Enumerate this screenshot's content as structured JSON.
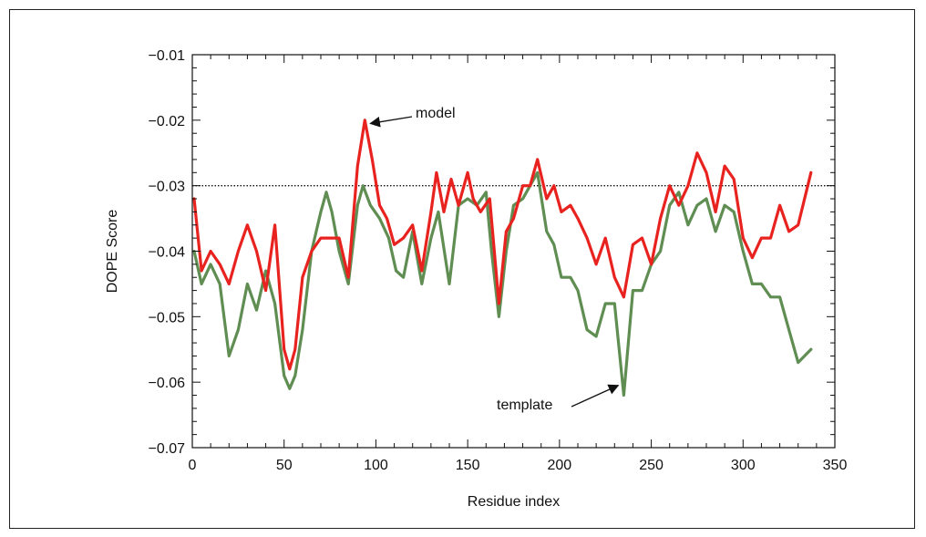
{
  "chart_data": {
    "type": "line",
    "title": "",
    "xlabel": "Residue index",
    "ylabel": "DOPE Score",
    "xlim": [
      0,
      350
    ],
    "ylim": [
      -0.07,
      -0.01
    ],
    "xticks": [
      0,
      50,
      100,
      150,
      200,
      250,
      300,
      350
    ],
    "yticks": [
      -0.07,
      -0.06,
      -0.05,
      -0.04,
      -0.03,
      -0.02,
      -0.01
    ],
    "xtick_labels": [
      "0",
      "50",
      "100",
      "150",
      "200",
      "250",
      "300",
      "350"
    ],
    "ytick_labels": [
      "−0.07",
      "−0.06",
      "−0.05",
      "−0.04",
      "−0.03",
      "−0.02",
      "−0.01"
    ],
    "grid": false,
    "reference_line": {
      "y": -0.03,
      "style": "dotted"
    },
    "series": [
      {
        "name": "model",
        "color": "#e8231f",
        "x": [
          1,
          5,
          10,
          15,
          20,
          25,
          30,
          35,
          40,
          45,
          50,
          53,
          56,
          60,
          65,
          70,
          75,
          80,
          85,
          90,
          94,
          98,
          102,
          106,
          110,
          115,
          120,
          125,
          130,
          133,
          137,
          141,
          145,
          150,
          153,
          157,
          162,
          167,
          171,
          175,
          180,
          184,
          188,
          193,
          197,
          201,
          206,
          210,
          215,
          220,
          225,
          230,
          235,
          240,
          245,
          250,
          255,
          260,
          265,
          270,
          275,
          280,
          285,
          290,
          295,
          300,
          305,
          310,
          315,
          320,
          325,
          330,
          337
        ],
        "values": [
          -0.032,
          -0.043,
          -0.04,
          -0.042,
          -0.045,
          -0.04,
          -0.036,
          -0.04,
          -0.046,
          -0.036,
          -0.055,
          -0.058,
          -0.055,
          -0.044,
          -0.04,
          -0.038,
          -0.038,
          -0.038,
          -0.044,
          -0.027,
          -0.02,
          -0.026,
          -0.033,
          -0.035,
          -0.039,
          -0.038,
          -0.036,
          -0.043,
          -0.034,
          -0.028,
          -0.034,
          -0.029,
          -0.033,
          -0.028,
          -0.032,
          -0.034,
          -0.032,
          -0.048,
          -0.037,
          -0.035,
          -0.03,
          -0.03,
          -0.026,
          -0.032,
          -0.03,
          -0.034,
          -0.033,
          -0.035,
          -0.038,
          -0.042,
          -0.038,
          -0.044,
          -0.047,
          -0.039,
          -0.038,
          -0.042,
          -0.035,
          -0.03,
          -0.033,
          -0.03,
          -0.025,
          -0.028,
          -0.034,
          -0.027,
          -0.029,
          -0.038,
          -0.041,
          -0.038,
          -0.038,
          -0.033,
          -0.037,
          -0.036,
          -0.028
        ]
      },
      {
        "name": "template",
        "color": "#5f8d52",
        "x": [
          1,
          5,
          10,
          15,
          20,
          25,
          30,
          35,
          40,
          45,
          50,
          53,
          56,
          60,
          65,
          70,
          73,
          76,
          80,
          85,
          90,
          93,
          97,
          102,
          107,
          111,
          115,
          120,
          125,
          130,
          134,
          140,
          145,
          150,
          155,
          160,
          163,
          167,
          171,
          175,
          180,
          184,
          188,
          193,
          197,
          201,
          206,
          210,
          215,
          220,
          225,
          230,
          235,
          240,
          245,
          250,
          255,
          260,
          265,
          270,
          275,
          280,
          285,
          290,
          295,
          300,
          305,
          310,
          315,
          320,
          325,
          330,
          337
        ],
        "values": [
          -0.04,
          -0.045,
          -0.042,
          -0.045,
          -0.056,
          -0.052,
          -0.045,
          -0.049,
          -0.043,
          -0.048,
          -0.059,
          -0.061,
          -0.059,
          -0.052,
          -0.04,
          -0.034,
          -0.031,
          -0.034,
          -0.04,
          -0.045,
          -0.033,
          -0.03,
          -0.033,
          -0.035,
          -0.038,
          -0.043,
          -0.044,
          -0.037,
          -0.045,
          -0.038,
          -0.034,
          -0.045,
          -0.033,
          -0.032,
          -0.033,
          -0.031,
          -0.04,
          -0.05,
          -0.04,
          -0.033,
          -0.032,
          -0.03,
          -0.028,
          -0.037,
          -0.039,
          -0.044,
          -0.044,
          -0.046,
          -0.052,
          -0.053,
          -0.048,
          -0.048,
          -0.062,
          -0.046,
          -0.046,
          -0.042,
          -0.04,
          -0.033,
          -0.031,
          -0.036,
          -0.033,
          -0.032,
          -0.037,
          -0.033,
          -0.034,
          -0.04,
          -0.045,
          -0.045,
          -0.047,
          -0.047,
          -0.052,
          -0.057,
          -0.055
        ]
      }
    ],
    "annotations": [
      {
        "text": "model",
        "series": "model",
        "point": [
          97,
          -0.0205
        ]
      },
      {
        "text": "template",
        "series": "template",
        "point": [
          232,
          -0.0605
        ]
      }
    ]
  }
}
